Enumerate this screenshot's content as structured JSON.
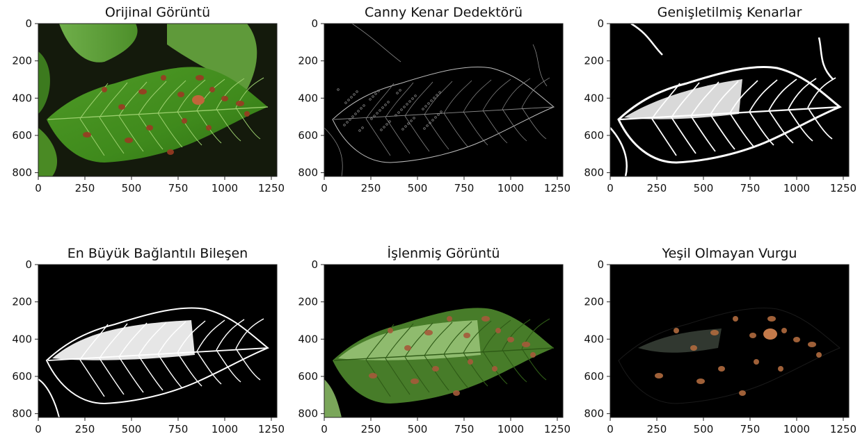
{
  "figure": {
    "panels": [
      {
        "title": "Orijinal Görüntü",
        "name": "original-image",
        "yticks": [
          "0",
          "200",
          "400",
          "600",
          "800"
        ],
        "xticks": [
          "0",
          "250",
          "500",
          "750",
          "1000",
          "1250"
        ]
      },
      {
        "title": "Canny Kenar Dedektörü",
        "name": "canny-edges",
        "yticks": [
          "0",
          "200",
          "400",
          "600",
          "800"
        ],
        "xticks": [
          "0",
          "250",
          "500",
          "750",
          "1000",
          "1250"
        ]
      },
      {
        "title": "Genişletilmiş Kenarlar",
        "name": "dilated-edges",
        "yticks": [
          "0",
          "200",
          "400",
          "600",
          "800"
        ],
        "xticks": [
          "0",
          "250",
          "500",
          "750",
          "1000",
          "1250"
        ]
      },
      {
        "title": "En Büyük Bağlantılı Bileşen",
        "name": "largest-component",
        "yticks": [
          "0",
          "200",
          "400",
          "600",
          "800"
        ],
        "xticks": [
          "0",
          "250",
          "500",
          "750",
          "1000",
          "1250"
        ]
      },
      {
        "title": "İşlenmiş Görüntü",
        "name": "processed-image",
        "yticks": [
          "0",
          "200",
          "400",
          "600",
          "800"
        ],
        "xticks": [
          "0",
          "250",
          "500",
          "750",
          "1000",
          "1250"
        ]
      },
      {
        "title": "Yeşil Olmayan Vurgu",
        "name": "non-green-highlight",
        "yticks": [
          "0",
          "200",
          "400",
          "600",
          "800"
        ],
        "xticks": [
          "0",
          "250",
          "500",
          "750",
          "1000",
          "1250"
        ]
      }
    ]
  }
}
